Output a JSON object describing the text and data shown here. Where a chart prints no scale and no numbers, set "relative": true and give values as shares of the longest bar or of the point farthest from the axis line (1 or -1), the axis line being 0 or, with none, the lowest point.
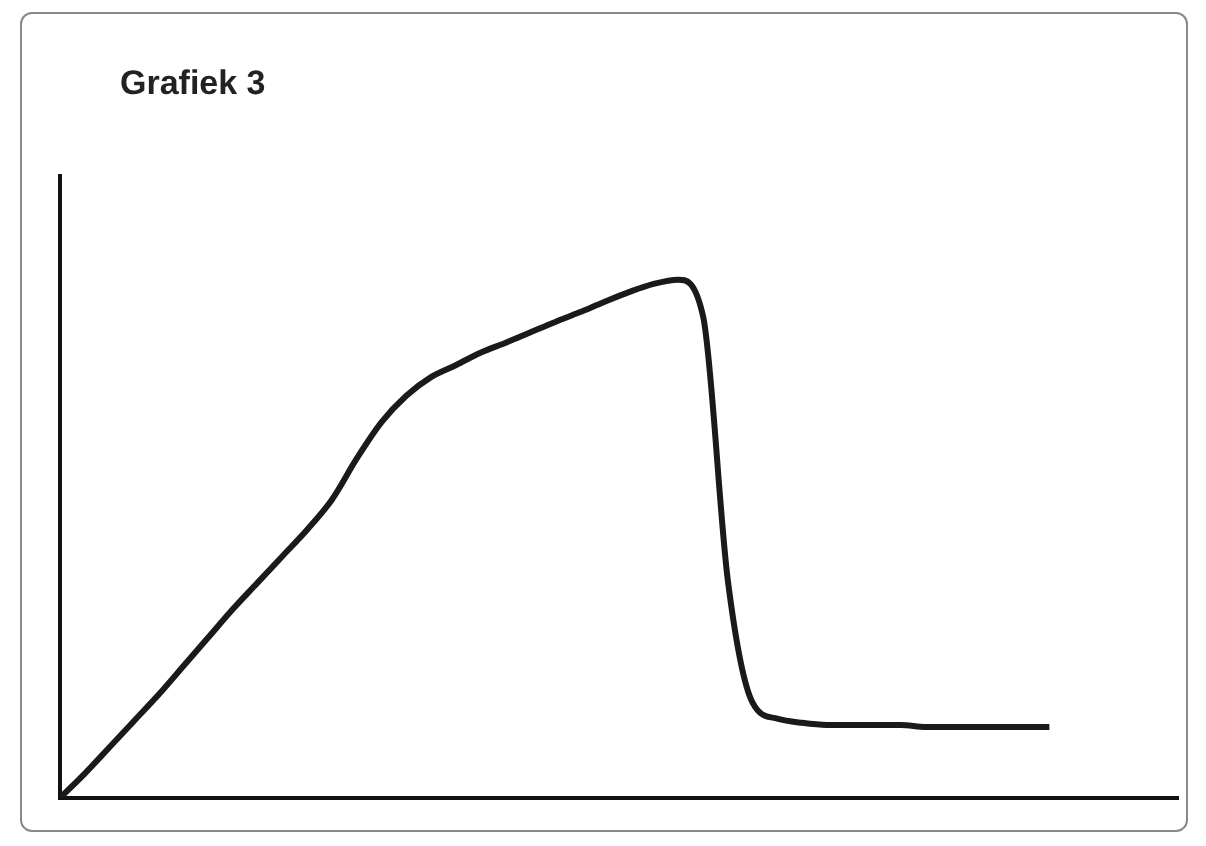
{
  "chart_data": {
    "type": "line",
    "title": "Grafiek 3",
    "relative": true,
    "color": "#1a1a1a",
    "categories": [
      null,
      null,
      null,
      null,
      null,
      null,
      null,
      null,
      null,
      null,
      null,
      null,
      null,
      null,
      null,
      null,
      null,
      null,
      null,
      null,
      null,
      null,
      null,
      null,
      null,
      null,
      null,
      null,
      null,
      null,
      null,
      null,
      null,
      null,
      null,
      null,
      null,
      null,
      null,
      null,
      null
    ],
    "values": [
      0,
      0.047,
      0.098,
      0.149,
      0.2,
      0.255,
      0.31,
      0.365,
      0.416,
      0.467,
      0.518,
      0.576,
      0.655,
      0.725,
      0.776,
      0.812,
      0.835,
      0.859,
      0.878,
      0.898,
      0.918,
      0.937,
      0.957,
      0.976,
      0.992,
      1,
      0.929,
      0.42,
      0.184,
      0.153,
      0.145,
      0.141,
      0.141,
      0.141,
      0.141,
      0.137,
      0.137,
      0.137,
      0.137,
      0.137,
      0.137
    ],
    "grid": false,
    "legend": false,
    "marker": "none",
    "line_style": "solid"
  }
}
